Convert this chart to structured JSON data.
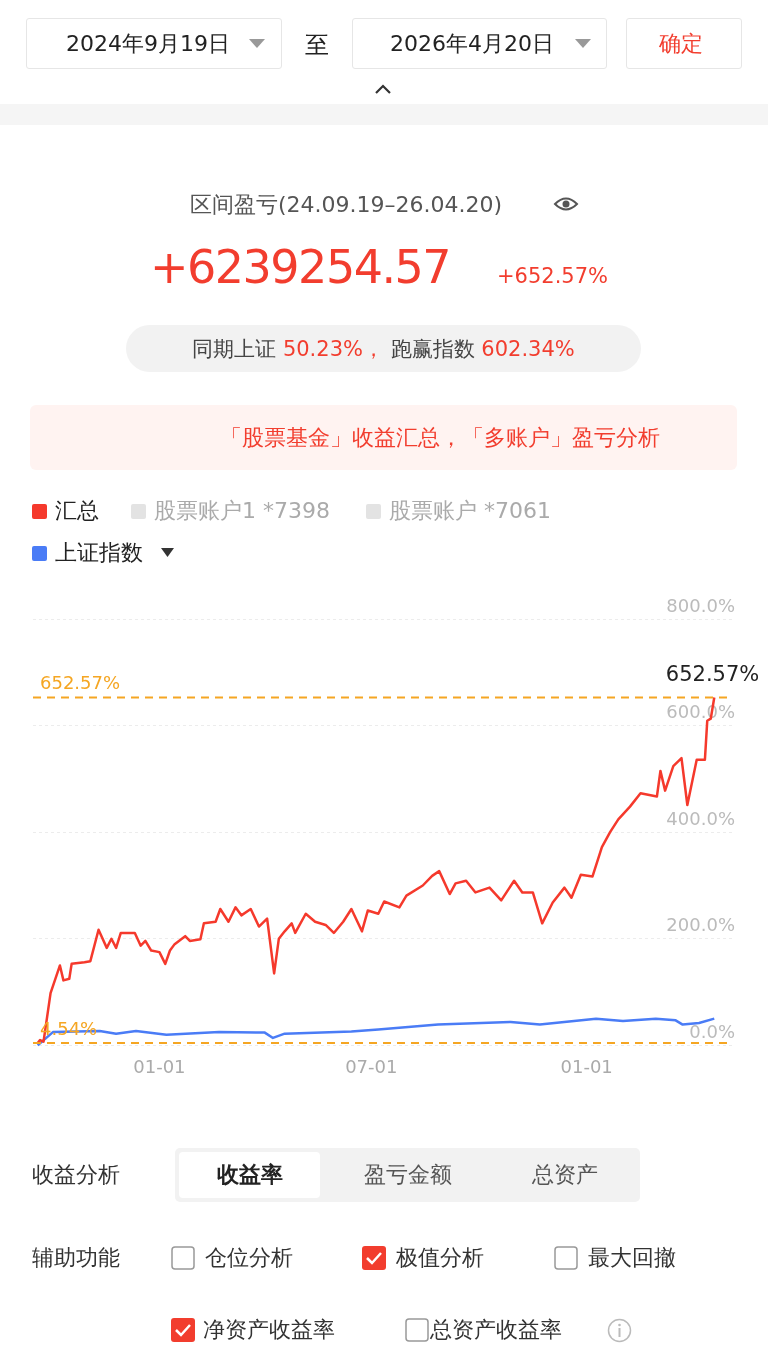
{
  "chart_data": {
    "type": "line",
    "annotations": [
      "2024年9月19日",
      "至",
      "2026年4月20日",
      "确定",
      "区间盈亏(24.09.19–26.04.20)",
      "+6239254.57",
      "+652.57%",
      "同期上证",
      "50.23%，",
      "跑赢指数",
      "602.34%",
      "「股票基金」收益汇总，「多账户」盈亏分析",
      "收益分析",
      "收益率",
      "盈亏金额",
      "总资产",
      "辅助功能",
      "仓位分析",
      "极值分析",
      "最大回撤",
      "净资产收益率",
      "总资产收益率",
      {
        "text": "652.57%",
        "x": "2026-04-20",
        "y": 652.57
      }
    ],
    "series": [
      {
        "name": "汇总",
        "color": "#f5392c",
        "x": [
          "2024-09-19",
          "2024-09-21",
          "2024-09-24",
          "2024-09-30",
          "2024-10-08",
          "2024-10-11",
          "2024-10-16",
          "2024-10-18",
          "2024-10-29",
          "2024-11-03",
          "2024-11-10",
          "2024-11-17",
          "2024-11-21",
          "2024-11-25",
          "2024-11-29",
          "2024-12-11",
          "2024-12-16",
          "2024-12-20",
          "2024-12-25",
          "2025-01-01",
          "2025-01-06",
          "2025-01-10",
          "2025-01-14",
          "2025-01-23",
          "2025-01-27",
          "2025-02-05",
          "2025-02-08",
          "2025-02-18",
          "2025-02-22",
          "2025-03-01",
          "2025-03-07",
          "2025-03-12",
          "2025-03-20",
          "2025-03-27",
          "2025-04-03",
          "2025-04-09",
          "2025-04-13",
          "2025-04-18",
          "2025-04-24",
          "2025-04-27",
          "2025-05-06",
          "2025-05-14",
          "2025-05-23",
          "2025-05-30",
          "2025-06-07",
          "2025-06-14",
          "2025-06-23",
          "2025-06-28",
          "2025-07-07",
          "2025-07-12",
          "2025-07-25",
          "2025-07-31",
          "2025-08-14",
          "2025-08-22",
          "2025-08-28",
          "2025-09-06",
          "2025-09-11",
          "2025-09-20",
          "2025-09-28",
          "2025-10-10",
          "2025-10-20",
          "2025-10-31",
          "2025-11-07",
          "2025-11-16",
          "2025-11-24",
          "2025-12-03",
          "2025-12-13",
          "2025-12-19",
          "2025-12-27",
          "2026-01-06",
          "2026-01-14",
          "2026-01-21",
          "2026-01-28",
          "2026-02-07",
          "2026-02-16",
          "2026-03-02",
          "2026-03-05",
          "2026-03-09",
          "2026-03-16",
          "2026-03-23",
          "2026-03-28",
          "2026-04-05",
          "2026-04-12",
          "2026-04-14",
          "2026-04-17",
          "2026-04-20"
        ],
        "values": [
          4.54,
          10,
          7,
          98,
          150,
          122,
          125,
          153,
          156,
          158,
          217,
          183,
          200,
          183,
          211,
          211,
          187,
          196,
          178,
          175,
          153,
          178,
          190,
          205,
          196,
          199,
          229,
          232,
          256,
          232,
          259,
          244,
          256,
          223,
          238,
          135,
          200,
          214,
          229,
          211,
          247,
          232,
          226,
          211,
          232,
          256,
          214,
          253,
          247,
          270,
          259,
          281,
          300,
          318,
          327,
          284,
          304,
          309,
          287,
          296,
          272,
          309,
          287,
          287,
          229,
          268,
          296,
          277,
          320,
          317,
          372,
          400,
          424,
          448,
          473,
          467,
          515,
          478,
          524,
          539,
          451,
          536,
          536,
          609,
          613,
          652.57
        ]
      },
      {
        "name": "股票账户1 *7398",
        "color": "#e3e3e3"
      },
      {
        "name": "股票账户 *7061",
        "color": "#e3e3e3"
      },
      {
        "name": "上证指数",
        "color": "#4a7cf6",
        "x": [
          "2024-09-19",
          "2024-10-02",
          "2024-11-11",
          "2024-11-25",
          "2024-12-12",
          "2025-01-07",
          "2025-02-21",
          "2025-04-01",
          "2025-04-08",
          "2025-04-18",
          "2025-06-14",
          "2025-07-07",
          "2025-08-27",
          "2025-10-28",
          "2025-11-22",
          "2026-01-09",
          "2026-02-01",
          "2026-03-01",
          "2026-03-18",
          "2026-03-24",
          "2026-04-07",
          "2026-04-20"
        ],
        "values": [
          0,
          25,
          27,
          22,
          27,
          20,
          25,
          24,
          14,
          22,
          26,
          30,
          39,
          44,
          39,
          50,
          46,
          50,
          47,
          39,
          42,
          50.23
        ]
      }
    ],
    "xlim": [
      "2024-09-15",
      "2026-05-06"
    ],
    "xticks": [
      {
        "value": "2025-01-01",
        "label": "01-01"
      },
      {
        "value": "2025-07-01",
        "label": "07-01"
      },
      {
        "value": "2026-01-01",
        "label": "01-01"
      }
    ],
    "ylim": [
      0,
      800
    ],
    "yticks": [
      {
        "value": 0,
        "label": "0.0%"
      },
      {
        "value": 200,
        "label": "200.0%"
      },
      {
        "value": 400,
        "label": "400.0%"
      },
      {
        "value": 600,
        "label": "600.0%"
      },
      {
        "value": 800,
        "label": "800.0%"
      }
    ],
    "ref_lines": [
      {
        "axis": "y",
        "value": 652.57,
        "label": "652.57%",
        "color": "#f5a623",
        "line_style": "dashed"
      },
      {
        "axis": "y",
        "value": 4.54,
        "label": "4.54%",
        "color": "#f5a623",
        "line_style": "dashed"
      }
    ],
    "grid": "y",
    "legend": "top left",
    "marker": "none",
    "line_style": "solid"
  }
}
